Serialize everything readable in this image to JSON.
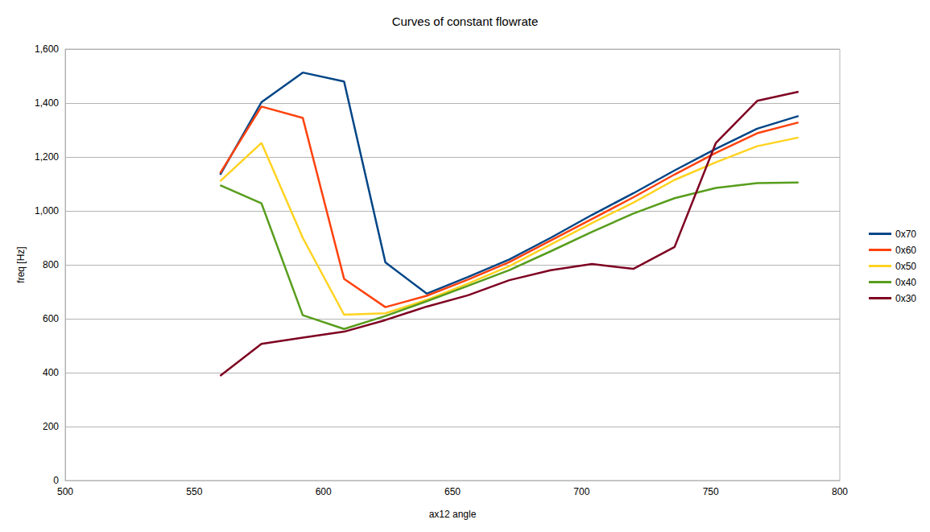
{
  "chart_data": {
    "type": "line",
    "title": "Curves of constant flowrate",
    "x_label": "ax12 angle",
    "y_label": "freq [Hz]",
    "x": [
      560,
      576,
      592,
      608,
      624,
      640,
      656,
      672,
      688,
      704,
      720,
      736,
      752,
      768,
      784
    ],
    "series": [
      {
        "name": "0x70",
        "color": "#004586",
        "values": [
          1134,
          1403,
          1513,
          1480,
          809,
          693,
          755,
          820,
          900,
          985,
          1065,
          1150,
          1230,
          1305,
          1352
        ]
      },
      {
        "name": "0x60",
        "color": "#ff420e",
        "values": [
          1140,
          1387,
          1345,
          748,
          643,
          685,
          745,
          810,
          890,
          970,
          1050,
          1135,
          1215,
          1288,
          1328
        ]
      },
      {
        "name": "0x50",
        "color": "#ffd320",
        "values": [
          1110,
          1252,
          900,
          615,
          620,
          670,
          730,
          795,
          875,
          955,
          1030,
          1115,
          1180,
          1240,
          1272
        ]
      },
      {
        "name": "0x40",
        "color": "#579d1c",
        "values": [
          1095,
          1028,
          613,
          562,
          610,
          665,
          722,
          780,
          850,
          922,
          990,
          1047,
          1085,
          1103,
          1105
        ]
      },
      {
        "name": "0x30",
        "color": "#7e0021",
        "values": [
          388,
          507,
          530,
          552,
          595,
          645,
          687,
          743,
          780,
          803,
          785,
          866,
          1252,
          1408,
          1442
        ]
      }
    ],
    "xlim": [
      500,
      800
    ],
    "xticks": [
      500,
      550,
      600,
      650,
      700,
      750,
      800
    ],
    "ylim": [
      0,
      1600
    ],
    "yticks": [
      0,
      200,
      400,
      600,
      800,
      1000,
      1200,
      1400,
      1600
    ],
    "grid": true,
    "legend": "right",
    "marker": "none"
  }
}
